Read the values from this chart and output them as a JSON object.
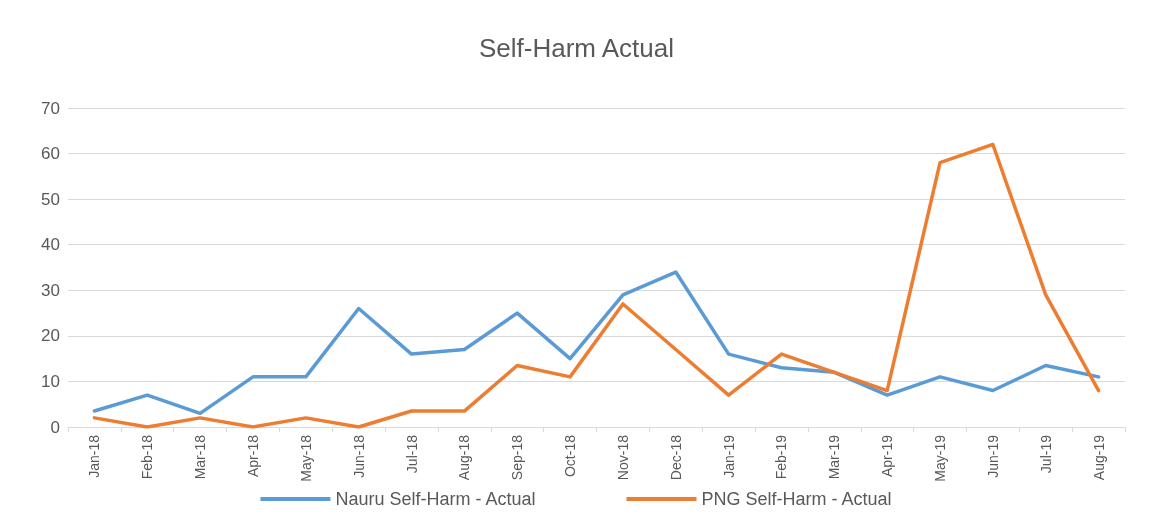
{
  "chart_data": {
    "type": "line",
    "title": "Self-Harm Actual",
    "categories": [
      "Jan-18",
      "Feb-18",
      "Mar-18",
      "Apr-18",
      "May-18",
      "Jun-18",
      "Jul-18",
      "Aug-18",
      "Sep-18",
      "Oct-18",
      "Nov-18",
      "Dec-18",
      "Jan-19",
      "Feb-19",
      "Mar-19",
      "Apr-19",
      "May-19",
      "Jun-19",
      "Jul-19",
      "Aug-19"
    ],
    "series": [
      {
        "name": "Nauru Self-Harm - Actual",
        "color": "#5b9bd5",
        "values": [
          3.5,
          7,
          3,
          11,
          11,
          26,
          16,
          17,
          25,
          15,
          29,
          34,
          16,
          13,
          12,
          7,
          11,
          8,
          13.5,
          11
        ]
      },
      {
        "name": "PNG Self-Harm - Actual",
        "color": "#ed7d31",
        "values": [
          2,
          0,
          2,
          0,
          2,
          0,
          3.5,
          3.5,
          13.5,
          11,
          27,
          17,
          7,
          16,
          12,
          8,
          58,
          62,
          29,
          8
        ]
      }
    ],
    "ylim": [
      0,
      70
    ],
    "yticks": [
      0,
      10,
      20,
      30,
      40,
      50,
      60,
      70
    ],
    "grid": "y",
    "legend": "bottom",
    "marker": "none",
    "line_style": "solid"
  }
}
